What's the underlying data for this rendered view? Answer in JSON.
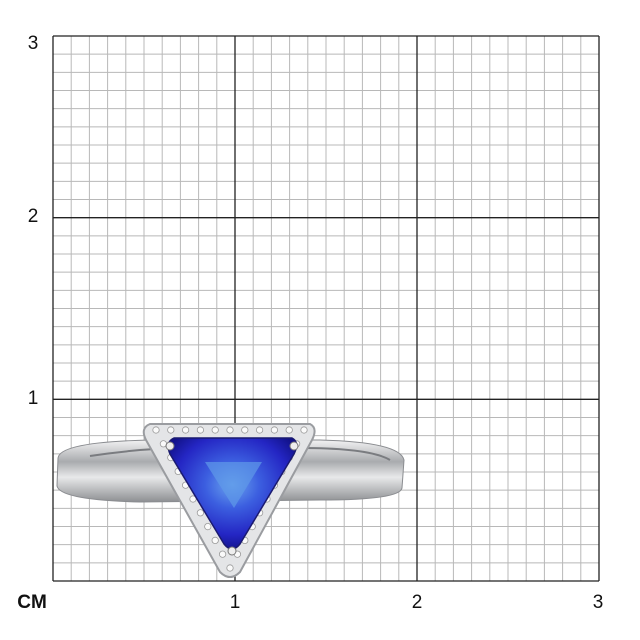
{
  "scale": {
    "unit_label": "CM",
    "x_ticks": [
      "1",
      "2",
      "3"
    ],
    "y_ticks": [
      "1",
      "2",
      "3"
    ],
    "subdivisions_per_unit": 10,
    "range_cm": [
      0,
      3
    ]
  },
  "colors": {
    "grid_minor": "#b8b8b8",
    "grid_major": "#222222",
    "gem": "#2b2fd0",
    "metal": "#d9dadc"
  }
}
